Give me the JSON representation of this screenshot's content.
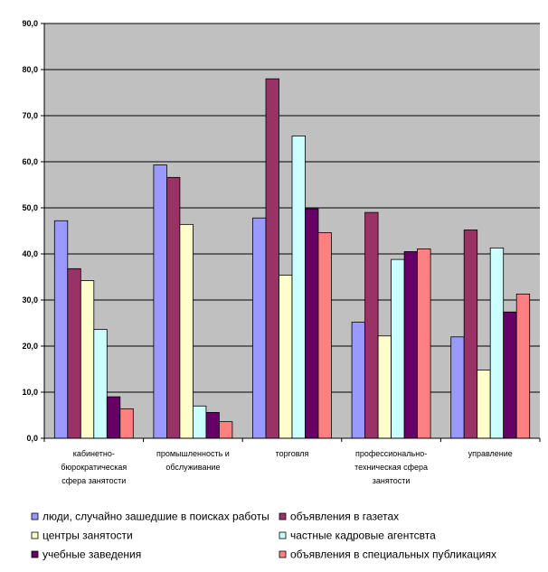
{
  "chart_data": {
    "type": "bar",
    "title": "",
    "xlabel": "",
    "ylabel": "",
    "ylim": [
      0,
      90
    ],
    "ytick_step": 10,
    "ytick_labels": [
      "0,0",
      "10,0",
      "20,0",
      "30,0",
      "40,0",
      "50,0",
      "60,0",
      "70,0",
      "80,0",
      "90,0"
    ],
    "grid": true,
    "plot_background": "#c0c0c0",
    "legend_position": "bottom",
    "categories": [
      [
        "кабинетно-",
        "бюрократическая",
        "сфера занятости"
      ],
      [
        "промышленность и",
        "обслуживание"
      ],
      [
        "торговля"
      ],
      [
        "профессионально-",
        "техническая сфера",
        "занятости"
      ],
      [
        "управление"
      ]
    ],
    "series": [
      {
        "name": "люди, случайно зашедшие в поисках работы",
        "color": "#9999ff",
        "values": [
          47.2,
          59.3,
          47.8,
          25.2,
          22.0
        ]
      },
      {
        "name": "объявления в газетах",
        "color": "#993366",
        "values": [
          36.8,
          56.6,
          78.0,
          49.0,
          45.2
        ]
      },
      {
        "name": "центры занятости",
        "color": "#ffffcc",
        "values": [
          34.2,
          46.4,
          35.4,
          22.2,
          14.8
        ]
      },
      {
        "name": "частные кадровые агентсвта",
        "color": "#ccffff",
        "values": [
          23.6,
          7.0,
          65.6,
          38.8,
          41.3
        ]
      },
      {
        "name": "учебные заведения",
        "color": "#660066",
        "values": [
          9.0,
          5.6,
          49.8,
          40.5,
          27.4
        ]
      },
      {
        "name": "объявления в специальных публикациях",
        "color": "#ff8080",
        "values": [
          6.4,
          3.6,
          44.6,
          41.1,
          31.3
        ]
      }
    ]
  }
}
